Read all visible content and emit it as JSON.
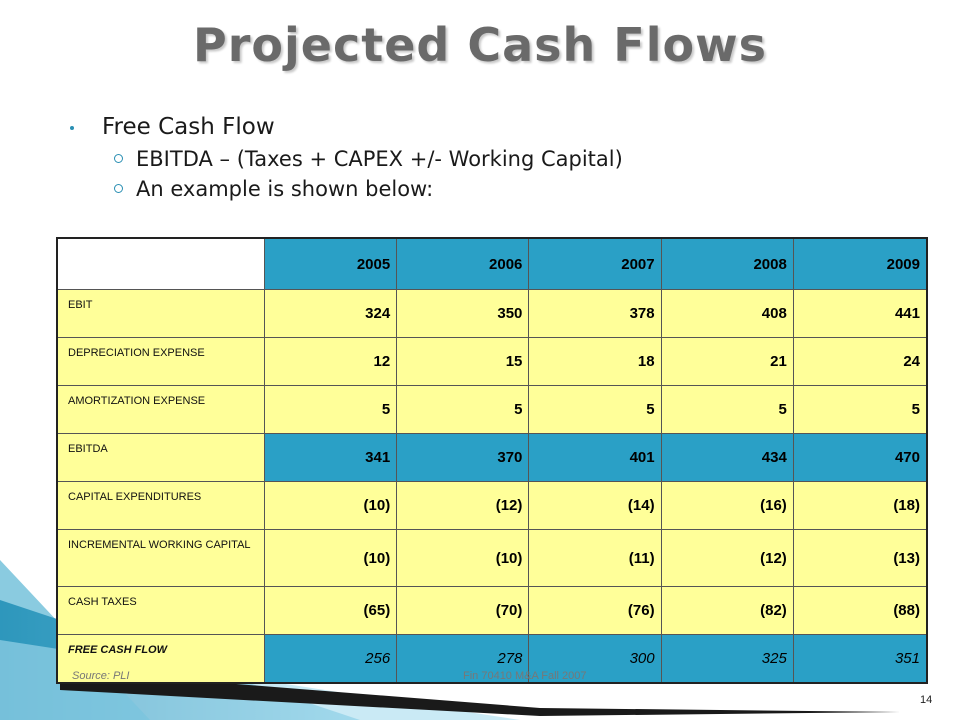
{
  "slide": {
    "title": "Projected Cash Flows",
    "bullet": "Free Cash Flow",
    "sub_bullets": [
      "EBITDA – (Taxes + CAPEX +/- Working Capital)",
      "An example is shown below:"
    ],
    "source": "Source: PLI",
    "footer": "Fin 70410 M&A Fall 2007",
    "page_number": "14",
    "colors": {
      "accent": "#2aa0c6",
      "row_fill": "#ffff99",
      "title": "#6a6a6a"
    }
  },
  "table": {
    "years": [
      "2005",
      "2006",
      "2007",
      "2008",
      "2009"
    ],
    "rows": [
      {
        "label": "EBIT",
        "values": [
          "324",
          "350",
          "378",
          "408",
          "441"
        ]
      },
      {
        "label": "DEPRECIATION EXPENSE",
        "values": [
          "12",
          "15",
          "18",
          "21",
          "24"
        ]
      },
      {
        "label": "AMORTIZATION EXPENSE",
        "values": [
          "5",
          "5",
          "5",
          "5",
          "5"
        ]
      },
      {
        "label": "EBITDA",
        "values": [
          "341",
          "370",
          "401",
          "434",
          "470"
        ]
      },
      {
        "label": "CAPITAL EXPENDITURES",
        "values": [
          "(10)",
          "(12)",
          "(14)",
          "(16)",
          "(18)"
        ]
      },
      {
        "label": "INCREMENTAL WORKING CAPITAL",
        "values": [
          "(10)",
          "(10)",
          "(11)",
          "(12)",
          "(13)"
        ]
      },
      {
        "label": "CASH TAXES",
        "values": [
          "(65)",
          "(70)",
          "(76)",
          "(82)",
          "(88)"
        ]
      },
      {
        "label": "FREE CASH FLOW",
        "values": [
          "256",
          "278",
          "300",
          "325",
          "351"
        ]
      }
    ]
  }
}
